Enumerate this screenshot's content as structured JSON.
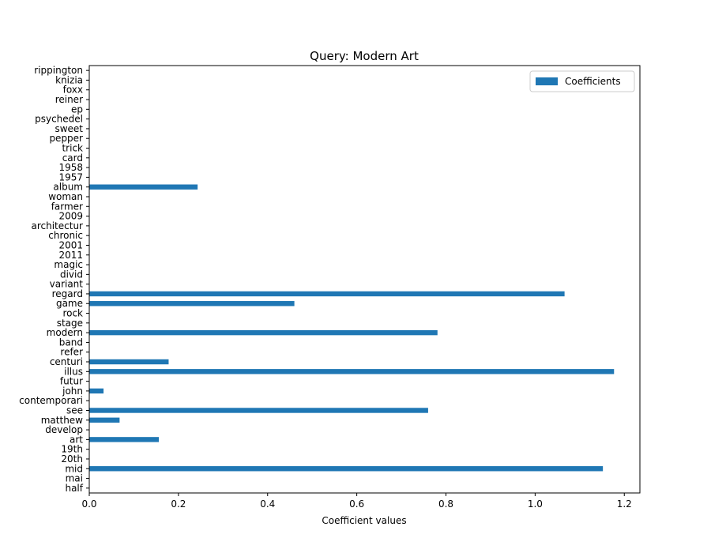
{
  "chart_data": {
    "type": "bar",
    "orientation": "horizontal",
    "title": "Query: Modern Art",
    "xlabel": "Coefficient values",
    "ylabel": "",
    "xlim": [
      0,
      1.235
    ],
    "xticks": [
      0,
      0.2,
      0.4,
      0.6,
      0.8,
      1.0,
      1.2
    ],
    "xtick_labels": [
      "0.0",
      "0.2",
      "0.4",
      "0.6",
      "0.8",
      "1.0",
      "1.2"
    ],
    "grid": false,
    "legend_position": "top-right",
    "bar_color": "#1f77b4",
    "series": [
      {
        "name": "Coefficients",
        "categories": [
          "half",
          "mai",
          "mid",
          "20th",
          "19th",
          "art",
          "develop",
          "matthew",
          "see",
          "contemporari",
          "john",
          "futur",
          "illus",
          "centuri",
          "refer",
          "band",
          "modern",
          "stage",
          "rock",
          "game",
          "regard",
          "variant",
          "divid",
          "magic",
          "2011",
          "2001",
          "chronic",
          "architectur",
          "2009",
          "farmer",
          "woman",
          "album",
          "1957",
          "1958",
          "card",
          "trick",
          "pepper",
          "sweet",
          "psychedel",
          "ep",
          "reiner",
          "foxx",
          "knizia",
          "rippington"
        ],
        "values": [
          0,
          0,
          1.152,
          0,
          0,
          0.156,
          0,
          0.068,
          0.76,
          0,
          0.032,
          0,
          1.177,
          0.178,
          0,
          0,
          0.781,
          0,
          0,
          0.46,
          1.066,
          0,
          0,
          0,
          0,
          0,
          0,
          0,
          0,
          0,
          0,
          0.243,
          0,
          0,
          0,
          0,
          0,
          0,
          0,
          0,
          0,
          0,
          0,
          0
        ]
      }
    ]
  }
}
